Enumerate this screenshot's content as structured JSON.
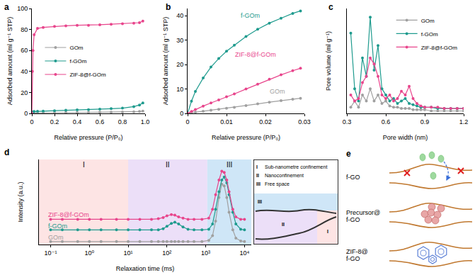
{
  "chart_data": [
    {
      "panel": "a",
      "type": "line",
      "marker": "circle",
      "x_label": "Relative pressure (P/P₀)",
      "y_label": "Adsorbed amount (ml g⁻¹ STP)",
      "xlim": [
        0,
        1
      ],
      "xticks": [
        0,
        0.2,
        0.4,
        0.6,
        0.8,
        {
          "value": 1,
          "label": "1.0"
        }
      ],
      "ylim": [
        0,
        100
      ],
      "yticks": [
        0,
        20,
        40,
        60,
        80,
        100
      ],
      "grid": false,
      "legend": "middle left",
      "x": [
        0,
        0.005,
        0.01,
        0.02,
        0.05,
        0.1,
        0.2,
        0.3,
        0.4,
        0.5,
        0.6,
        0.7,
        0.8,
        0.9,
        0.95,
        0.98
      ],
      "series": [
        {
          "name": "GOm",
          "color": "#a0a0a0",
          "values": [
            0,
            0.2,
            0.3,
            0.4,
            0.5,
            0.6,
            0.7,
            0.8,
            0.9,
            1,
            1.1,
            1.2,
            1.3,
            1.5,
            1.8,
            2.2
          ]
        },
        {
          "name": "f-GOm",
          "color": "#1f9b8e",
          "values": [
            0,
            1,
            1.5,
            1.8,
            2,
            2.2,
            2.6,
            3,
            3.3,
            3.6,
            4,
            4.5,
            5,
            6.5,
            8,
            10
          ]
        },
        {
          "name": "ZIF-8@f-GOm",
          "color": "#e8458c",
          "values": [
            0,
            40,
            60,
            75,
            81,
            82,
            83,
            83.5,
            84,
            84,
            84.5,
            85,
            85.5,
            86,
            86.5,
            88
          ]
        }
      ]
    },
    {
      "panel": "b",
      "type": "line",
      "marker": "circle",
      "x_label": "Relative pressure (P/P₀)",
      "y_label": "Adsorbed amount (ml g⁻¹ STP)",
      "xlim": [
        0,
        0.03
      ],
      "xticks": [
        0,
        0.01,
        0.02,
        0.03
      ],
      "ylim": [
        0,
        43
      ],
      "yticks": [
        0,
        10,
        20,
        30,
        40
      ],
      "grid": false,
      "x": [
        0,
        0.001,
        0.002,
        0.004,
        0.006,
        0.008,
        0.01,
        0.012,
        0.015,
        0.018,
        0.021,
        0.024,
        0.027,
        0.029
      ],
      "series": [
        {
          "name": "GOm",
          "color": "#a0a0a0",
          "values": [
            0,
            0.3,
            0.5,
            0.9,
            1.3,
            1.7,
            2.1,
            2.5,
            3.2,
            3.9,
            4.6,
            5.2,
            5.8,
            6.2
          ]
        },
        {
          "name": "f-GOm",
          "color": "#1f9b8e",
          "values": [
            0,
            5,
            9,
            14.5,
            19,
            22.5,
            25.5,
            28,
            31.5,
            34.5,
            37,
            39,
            41,
            42
          ]
        },
        {
          "name": "ZIF-8@f-GOm",
          "color": "#e8458c",
          "values": [
            0,
            0.8,
            1.6,
            3,
            4.3,
            5.5,
            6.8,
            8,
            10,
            12,
            14,
            15.8,
            17.5,
            18.5
          ]
        }
      ]
    },
    {
      "panel": "c",
      "type": "line",
      "marker": "circle",
      "x_label": "Pore width (nm)",
      "y_label": "Pore volume (ml g⁻¹)",
      "xlim": [
        0.3,
        1.2
      ],
      "xticks": [
        0.3,
        0.6,
        0.9,
        1.2
      ],
      "ylim": [
        0,
        0.85
      ],
      "tick_labels": "x",
      "grid": false,
      "legend": "top right",
      "x": [
        0.33,
        0.36,
        0.39,
        0.42,
        0.45,
        0.48,
        0.51,
        0.54,
        0.57,
        0.6,
        0.63,
        0.66,
        0.69,
        0.72,
        0.75,
        0.78,
        0.81,
        0.84,
        0.87,
        0.9,
        0.95,
        1,
        1.05,
        1.1,
        1.15,
        1.2
      ],
      "series": [
        {
          "name": "GOm",
          "color": "#a0a0a0",
          "values": [
            0.05,
            0.1,
            0.05,
            0.15,
            0.1,
            0.2,
            0.1,
            0.15,
            0.08,
            0.1,
            0.06,
            0.05,
            0.05,
            0.04,
            0.04,
            0.04,
            0.03,
            0.03,
            0.03,
            0.03,
            0.02,
            0.02,
            0.02,
            0.02,
            0.02,
            0.02
          ]
        },
        {
          "name": "f-GOm",
          "color": "#1f9b8e",
          "values": [
            0.65,
            0.2,
            0.1,
            0.45,
            0.3,
            0.78,
            0.35,
            0.55,
            0.2,
            0.15,
            0.1,
            0.12,
            0.08,
            0.1,
            0.12,
            0.08,
            0.07,
            0.06,
            0.05,
            0.05,
            0.05,
            0.04,
            0.04,
            0.04,
            0.04,
            0.04
          ]
        },
        {
          "name": "ZIF-8@f-GOm",
          "color": "#e8458c",
          "values": [
            0.15,
            0.1,
            0.12,
            0.25,
            0.3,
            0.45,
            0.4,
            0.3,
            0.15,
            0.12,
            0.15,
            0.1,
            0.12,
            0.18,
            0.15,
            0.22,
            0.12,
            0.08,
            0.06,
            0.05,
            0.05,
            0.05,
            0.04,
            0.04,
            0.04,
            0.04
          ]
        }
      ]
    },
    {
      "panel": "d",
      "type": "line",
      "marker": "circle",
      "log": "x",
      "x_label": "Relaxation time (ms)",
      "y_label": "Intensity (a.u.)",
      "xlim": [
        0.05,
        15000
      ],
      "xticks": [
        {
          "value": 0.1,
          "label": "10⁻¹"
        },
        {
          "value": 1,
          "label": "10⁰"
        },
        {
          "value": 10,
          "label": "10¹"
        },
        {
          "value": 100,
          "label": "10²"
        },
        {
          "value": 1000,
          "label": "10³"
        },
        {
          "value": 10000,
          "label": "10⁴"
        }
      ],
      "ylim": [
        -0.05,
        1.4
      ],
      "tick_labels": "x",
      "grid": false,
      "regions": [
        {
          "label": "I",
          "description": "Sub-nanometre confinement",
          "x0": 0.05,
          "x1": 10,
          "color": "#fde4e4"
        },
        {
          "label": "II",
          "description": "Nanoconfinement",
          "x0": 10,
          "x1": 1100,
          "color": "#ecdff8"
        },
        {
          "label": "III",
          "description": "Free space",
          "x0": 1100,
          "x1": 15000,
          "color": "#cfe6f7"
        }
      ],
      "x": [
        0.1,
        0.2,
        0.5,
        1,
        2,
        5,
        10,
        20,
        40,
        60,
        80,
        100,
        130,
        160,
        200,
        260,
        350,
        500,
        800,
        1200,
        1500,
        1800,
        2200,
        2600,
        3000,
        3500,
        4000,
        5000,
        6000,
        8000,
        10000
      ],
      "series": [
        {
          "name": "GOm",
          "color": "#a0a0a0",
          "values": [
            0,
            0,
            0,
            0,
            0,
            0,
            0,
            0,
            0,
            0,
            0,
            0,
            0,
            0,
            0,
            0,
            0,
            0,
            0,
            0.02,
            0.1,
            0.35,
            0.75,
            0.98,
            0.95,
            0.75,
            0.5,
            0.2,
            0.06,
            0.01,
            0
          ]
        },
        {
          "name": "f-GOm",
          "color": "#1f9b8e",
          "values": [
            0.2,
            0.2,
            0.2,
            0.2,
            0.2,
            0.2,
            0.2,
            0.2,
            0.2,
            0.2,
            0.22,
            0.26,
            0.31,
            0.33,
            0.3,
            0.25,
            0.21,
            0.2,
            0.2,
            0.21,
            0.3,
            0.55,
            0.85,
            1.05,
            1.1,
            1.0,
            0.8,
            0.5,
            0.3,
            0.21,
            0.2
          ]
        },
        {
          "name": "ZIF-8@f-GOm",
          "color": "#e8458c",
          "values": [
            0.38,
            0.38,
            0.38,
            0.38,
            0.38,
            0.38,
            0.38,
            0.38,
            0.38,
            0.39,
            0.41,
            0.44,
            0.46,
            0.45,
            0.42,
            0.4,
            0.38,
            0.38,
            0.38,
            0.4,
            0.55,
            0.8,
            1.05,
            1.2,
            1.18,
            1.05,
            0.85,
            0.55,
            0.42,
            0.38,
            0.38
          ]
        }
      ]
    }
  ],
  "diagram": {
    "panel": "e",
    "rows": [
      {
        "label": "f-GO"
      },
      {
        "label": "Precursor@f-GO"
      },
      {
        "label": "ZIF-8@f-GO"
      }
    ]
  }
}
